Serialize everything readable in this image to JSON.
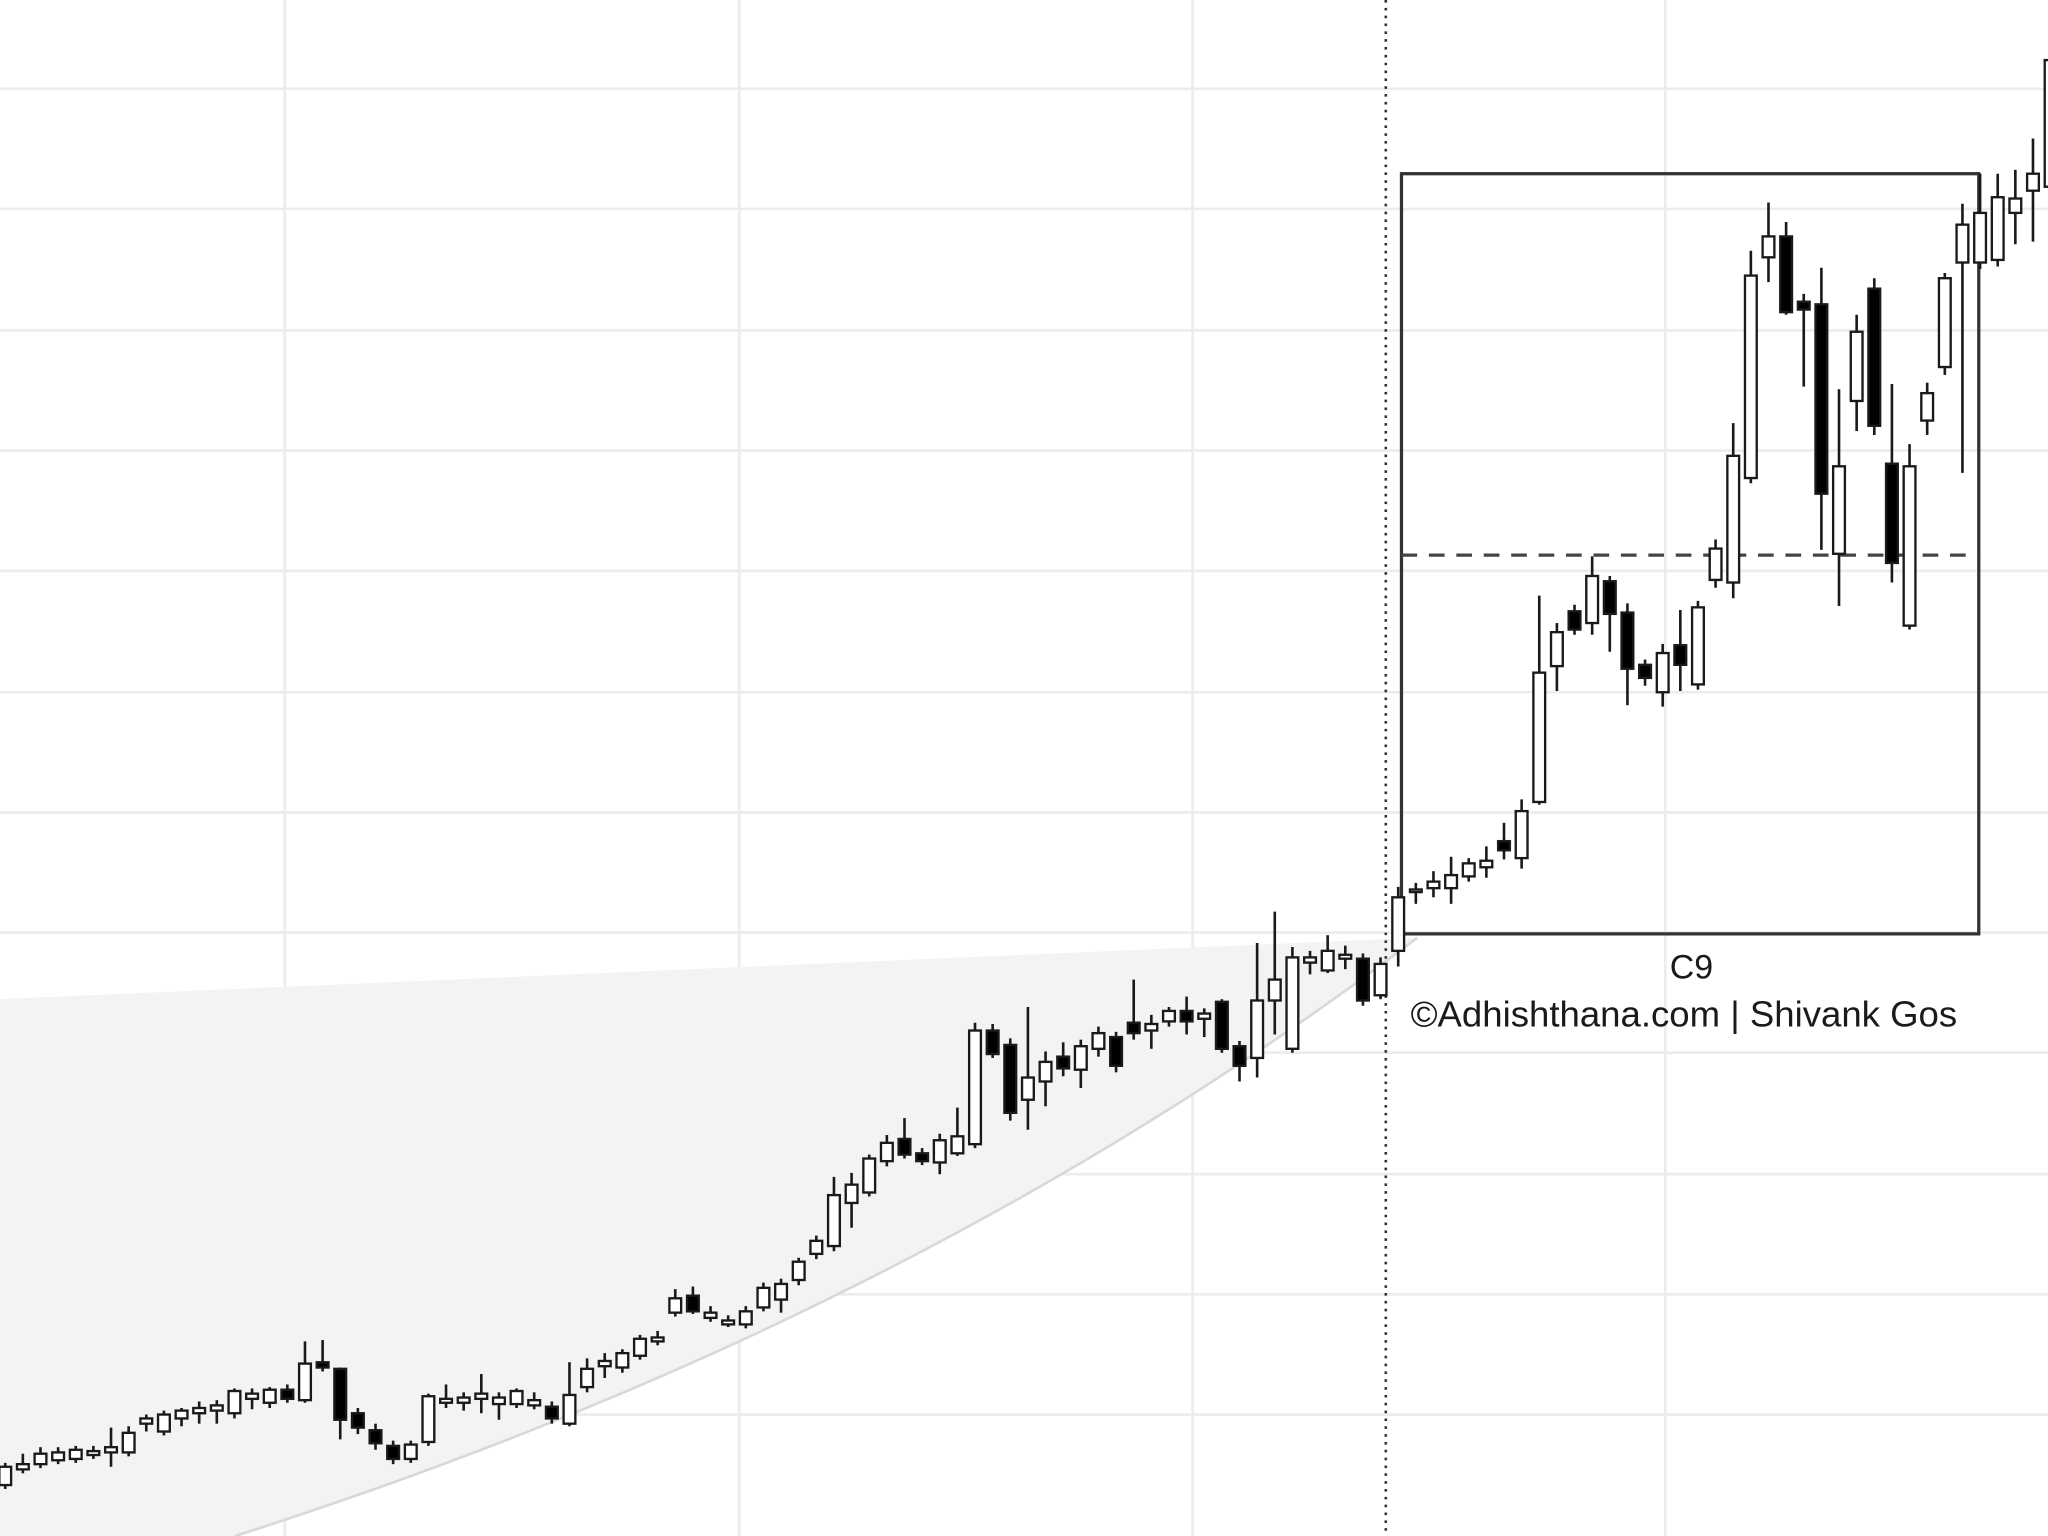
{
  "chart_data": {
    "type": "candlestick",
    "annotation": "C9",
    "credit": "©Adhishthana.com | Shivank Gos",
    "ylim": [
      0,
      1176
    ],
    "yticks": [
      93,
      185,
      277,
      370,
      462,
      554,
      646,
      739,
      831,
      923,
      1016,
      1108
    ],
    "grid": true,
    "up_color": "#ffffff",
    "down_color": "#000000",
    "edge_color": "#1a1a1a",
    "open": [
      39,
      51,
      55,
      58,
      59,
      62,
      64,
      64,
      86,
      80,
      90,
      94,
      96,
      94,
      105,
      102,
      112,
      104,
      133,
      128,
      94,
      81,
      69,
      59,
      72,
      102,
      102,
      105,
      101,
      101,
      100,
      99,
      86,
      114,
      130,
      129,
      138,
      149,
      171,
      184,
      167,
      162,
      162,
      175,
      181,
      196,
      216,
      222,
      255,
      263,
      287,
      304,
      293,
      286,
      293,
      300,
      387,
      376,
      334,
      348,
      367,
      357,
      373,
      382,
      393,
      387,
      394,
      402,
      396,
      409,
      375,
      366,
      410,
      373,
      439,
      433,
      442,
      442,
      414,
      448,
      493,
      496,
      496,
      505,
      512,
      532,
      519,
      562,
      666,
      708,
      699,
      731,
      707,
      667,
      646,
      682,
      652,
      732,
      730,
      810,
      979,
      995,
      945,
      943,
      752,
      869,
      955,
      821,
      697,
      854,
      895,
      975,
      975,
      977,
      1013,
      1030,
      1033
    ],
    "high": [
      56,
      63,
      68,
      68,
      69,
      69,
      83,
      84,
      93,
      96,
      98,
      103,
      104,
      113,
      113,
      114,
      116,
      149,
      150,
      129,
      98,
      86,
      73,
      73,
      109,
      116,
      110,
      124,
      110,
      113,
      110,
      103,
      133,
      136,
      140,
      143,
      154,
      157,
      189,
      191,
      176,
      169,
      176,
      194,
      197,
      213,
      230,
      275,
      278,
      292,
      307,
      320,
      297,
      308,
      328,
      393,
      392,
      381,
      405,
      371,
      378,
      380,
      390,
      386,
      426,
      399,
      405,
      413,
      404,
      411,
      379,
      454,
      478,
      451,
      448,
      460,
      452,
      446,
      443,
      497,
      500,
      509,
      520,
      519,
      528,
      546,
      564,
      720,
      699,
      713,
      750,
      735,
      714,
      671,
      683,
      709,
      716,
      763,
      852,
      984,
      1021,
      1006,
      951,
      971,
      878,
      935,
      963,
      882,
      836,
      883,
      967,
      1020,
      1043,
      1043,
      1046,
      1070,
      1139
    ],
    "low": [
      36,
      48,
      52,
      55,
      56,
      59,
      53,
      61,
      80,
      77,
      84,
      86,
      86,
      90,
      97,
      98,
      102,
      102,
      126,
      74,
      78,
      66,
      55,
      56,
      69,
      98,
      96,
      94,
      89,
      98,
      97,
      86,
      84,
      110,
      121,
      125,
      135,
      146,
      168,
      170,
      164,
      160,
      159,
      172,
      171,
      192,
      212,
      218,
      236,
      260,
      283,
      289,
      284,
      277,
      291,
      297,
      366,
      318,
      311,
      329,
      352,
      343,
      367,
      355,
      380,
      373,
      390,
      384,
      382,
      370,
      348,
      351,
      384,
      370,
      430,
      431,
      434,
      406,
      411,
      436,
      484,
      489,
      484,
      501,
      504,
      518,
      511,
      560,
      647,
      690,
      690,
      677,
      636,
      651,
      635,
      647,
      648,
      726,
      718,
      806,
      960,
      935,
      880,
      755,
      712,
      846,
      843,
      730,
      694,
      843,
      889,
      814,
      970,
      972,
      989,
      991,
      1030
    ],
    "close": [
      53,
      55,
      63,
      64,
      66,
      65,
      68,
      79,
      90,
      93,
      96,
      98,
      100,
      111,
      109,
      112,
      105,
      132,
      129,
      89,
      83,
      71,
      59,
      70,
      107,
      105,
      106,
      109,
      106,
      111,
      104,
      90,
      108,
      128,
      134,
      140,
      151,
      152,
      182,
      172,
      171,
      165,
      172,
      190,
      193,
      210,
      226,
      261,
      269,
      289,
      301,
      292,
      287,
      303,
      306,
      387,
      369,
      324,
      351,
      363,
      358,
      375,
      385,
      360,
      385,
      392,
      402,
      394,
      400,
      373,
      360,
      410,
      426,
      443,
      443,
      448,
      445,
      410,
      438,
      489,
      495,
      501,
      506,
      515,
      517,
      525,
      555,
      661,
      692,
      694,
      735,
      706,
      664,
      657,
      676,
      667,
      711,
      756,
      827,
      965,
      995,
      937,
      939,
      798,
      819,
      922,
      850,
      745,
      819,
      875,
      963,
      1004,
      1013,
      1025,
      1024,
      1043,
      1130
    ]
  }
}
